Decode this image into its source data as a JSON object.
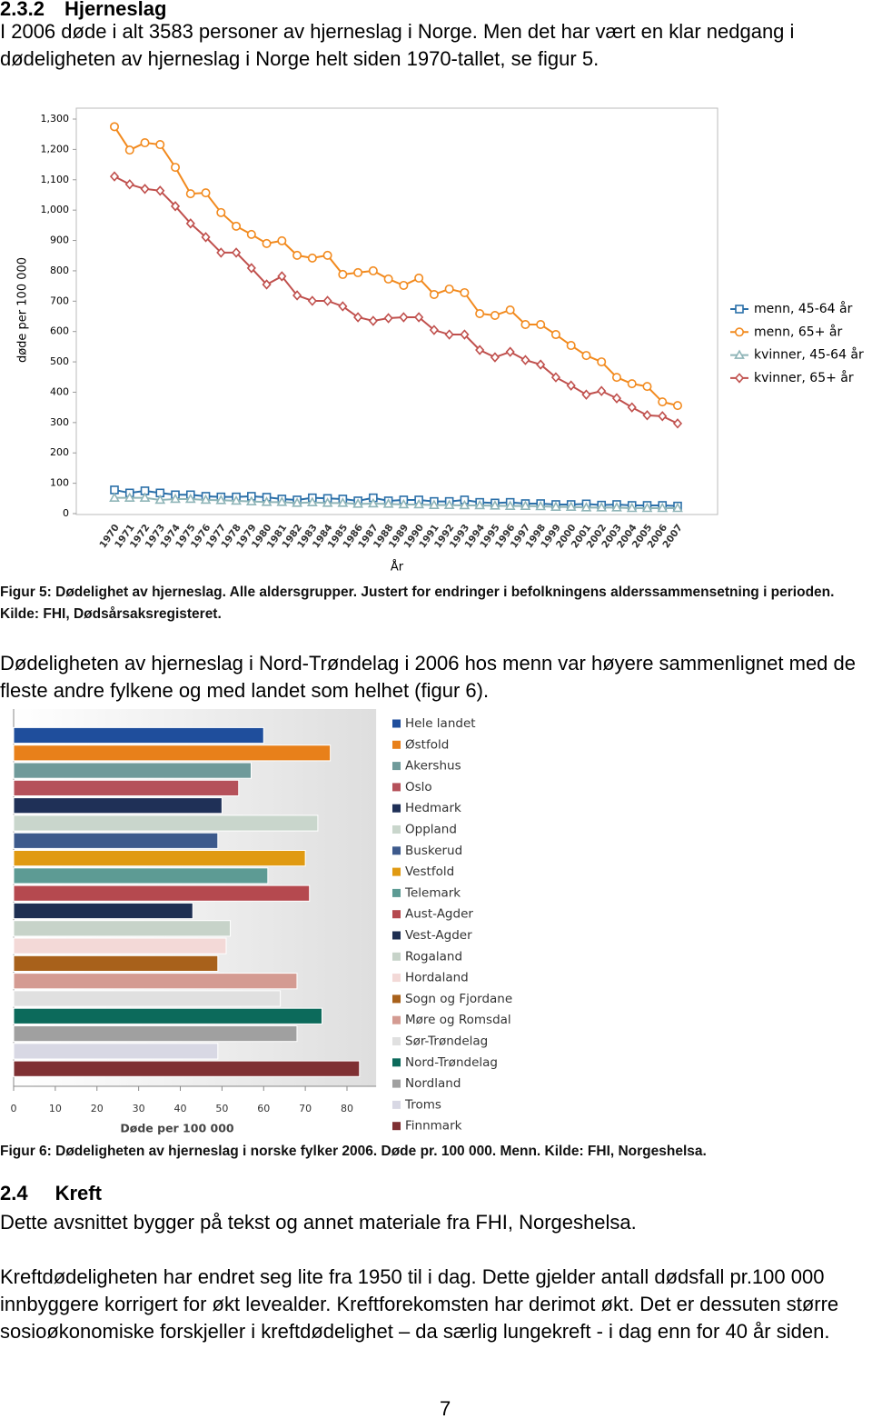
{
  "section_1": {
    "number": "2.3.2",
    "title": "Hjerneslag"
  },
  "text_1": "I 2006 døde i alt 3583 personer av hjerneslag i Norge. Men det har vært en klar nedgang i dødeligheten av hjerneslag i Norge helt siden 1970-tallet, se figur 5.",
  "caption_1": "Figur 5: Dødelighet av hjerneslag. Alle aldersgrupper. Justert for endringer i befolkningens alderssammensetning i perioden. Kilde: FHI, Dødsårsaksregisteret.",
  "text_2": "Dødeligheten av hjerneslag i Nord-Trøndelag i 2006 hos menn var høyere sammenlignet med de fleste andre fylkene og med landet som helhet (figur 6).",
  "caption_2": "Figur 6: Dødeligheten av hjerneslag i norske fylker 2006. Døde pr. 100 000. Menn. Kilde: FHI, Norgeshelsa.",
  "section_2": {
    "number": "2.4",
    "title": "Kreft"
  },
  "text_3": "Dette avsnittet bygger på tekst og annet materiale fra FHI, Norgeshelsa.",
  "text_4": "Kreftdødeligheten har endret seg lite fra 1950 til i dag. Dette gjelder antall dødsfall pr.100 000 innbyggere korrigert for økt levealder. Kreftforekomsten har derimot økt. Det er dessuten større sosioøkonomiske forskjeller i kreftdødelighet – da særlig lungekreft - i dag enn for 40 år siden.",
  "page_number": 7,
  "chart_data": [
    {
      "type": "line",
      "x_label": "År",
      "y_label": "døde per 100 000",
      "categories": [
        "1970",
        "1971",
        "1972",
        "1973",
        "1974",
        "1975",
        "1976",
        "1977",
        "1978",
        "1979",
        "1980",
        "1981",
        "1982",
        "1983",
        "1984",
        "1985",
        "1986",
        "1987",
        "1988",
        "1989",
        "1990",
        "1991",
        "1992",
        "1993",
        "1994",
        "1995",
        "1996",
        "1997",
        "1998",
        "1999",
        "2000",
        "2001",
        "2002",
        "2003",
        "2004",
        "2005",
        "2006",
        "2007"
      ],
      "ylim": [
        0,
        1300
      ],
      "yticks": [
        0,
        100,
        200,
        300,
        400,
        500,
        600,
        700,
        800,
        900,
        {
          "value": 1000,
          "label": "1,000"
        },
        {
          "value": 1100,
          "label": "1,100"
        },
        {
          "value": 1200,
          "label": "1,200"
        },
        {
          "value": 1300,
          "label": "1,300"
        }
      ],
      "grid": false,
      "legend": "right",
      "series": [
        {
          "name": "menn, 45-64 år",
          "color": "#2a6fa8",
          "marker": "square",
          "values": [
            78,
            68,
            75,
            68,
            62,
            62,
            57,
            55,
            55,
            57,
            54,
            48,
            45,
            52,
            50,
            48,
            42,
            52,
            42,
            45,
            45,
            40,
            40,
            45,
            37,
            35,
            37,
            33,
            33,
            30,
            30,
            32,
            28,
            30,
            27,
            27,
            27,
            25
          ]
        },
        {
          "name": "menn, 65+ år",
          "color": "#f28a1e",
          "marker": "circle",
          "values": [
            1275,
            1198,
            1222,
            1216,
            1141,
            1054,
            1057,
            992,
            947,
            920,
            890,
            899,
            851,
            842,
            851,
            788,
            794,
            800,
            773,
            752,
            776,
            722,
            740,
            728,
            659,
            653,
            671,
            623,
            623,
            590,
            554,
            521,
            500,
            449,
            428,
            419,
            368,
            356
          ]
        },
        {
          "name": "kvinner, 45-64 år",
          "color": "#8fb5b8",
          "marker": "triangle",
          "values": [
            52,
            52,
            52,
            45,
            48,
            48,
            45,
            44,
            42,
            40,
            38,
            38,
            35,
            37,
            35,
            35,
            32,
            33,
            32,
            30,
            30,
            28,
            28,
            27,
            27,
            26,
            25,
            25,
            24,
            22,
            22,
            20,
            20,
            20,
            18,
            18,
            18,
            18
          ]
        },
        {
          "name": "kvinner, 65+ år",
          "color": "#c0504d",
          "marker": "diamond",
          "values": [
            1111,
            1085,
            1070,
            1064,
            1013,
            956,
            911,
            860,
            860,
            809,
            755,
            782,
            719,
            701,
            701,
            683,
            647,
            635,
            644,
            647,
            647,
            605,
            590,
            590,
            539,
            515,
            533,
            506,
            491,
            449,
            422,
            392,
            404,
            380,
            350,
            324,
            321,
            297
          ]
        }
      ]
    },
    {
      "type": "bar",
      "orientation": "horizontal",
      "x_label": "Døde per 100 000",
      "categories": [
        "Hele landet",
        "Østfold",
        "Akershus",
        "Oslo",
        "Hedmark",
        "Oppland",
        "Buskerud",
        "Vestfold",
        "Telemark",
        "Aust-Agder",
        "Vest-Agder",
        "Rogaland",
        "Hordaland",
        "Sogn og Fjordane",
        "Møre og Romsdal",
        "Sør-Trøndelag",
        "Nord-Trøndelag",
        "Nordland",
        "Troms",
        "Finnmark"
      ],
      "values": [
        60,
        76,
        57,
        54,
        50,
        73,
        49,
        70,
        61,
        71,
        43,
        52,
        51,
        49,
        68,
        64,
        74,
        68,
        49,
        83
      ],
      "colors": [
        "#1f4e9c",
        "#e8801a",
        "#6f9a9a",
        "#b5515a",
        "#1f3057",
        "#c9d6cc",
        "#3d5a8c",
        "#e09a12",
        "#5d9b94",
        "#b5494f",
        "#1e2f52",
        "#c7d3c9",
        "#f3d9d7",
        "#a8611b",
        "#d49b92",
        "#e0e0e0",
        "#0c6a5b",
        "#a0a0a0",
        "#d8d8e4",
        "#7f3033"
      ],
      "xlim": [
        0,
        87
      ],
      "xticks": [
        0,
        10,
        20,
        30,
        40,
        50,
        60,
        70,
        80
      ],
      "legend": "right"
    }
  ]
}
